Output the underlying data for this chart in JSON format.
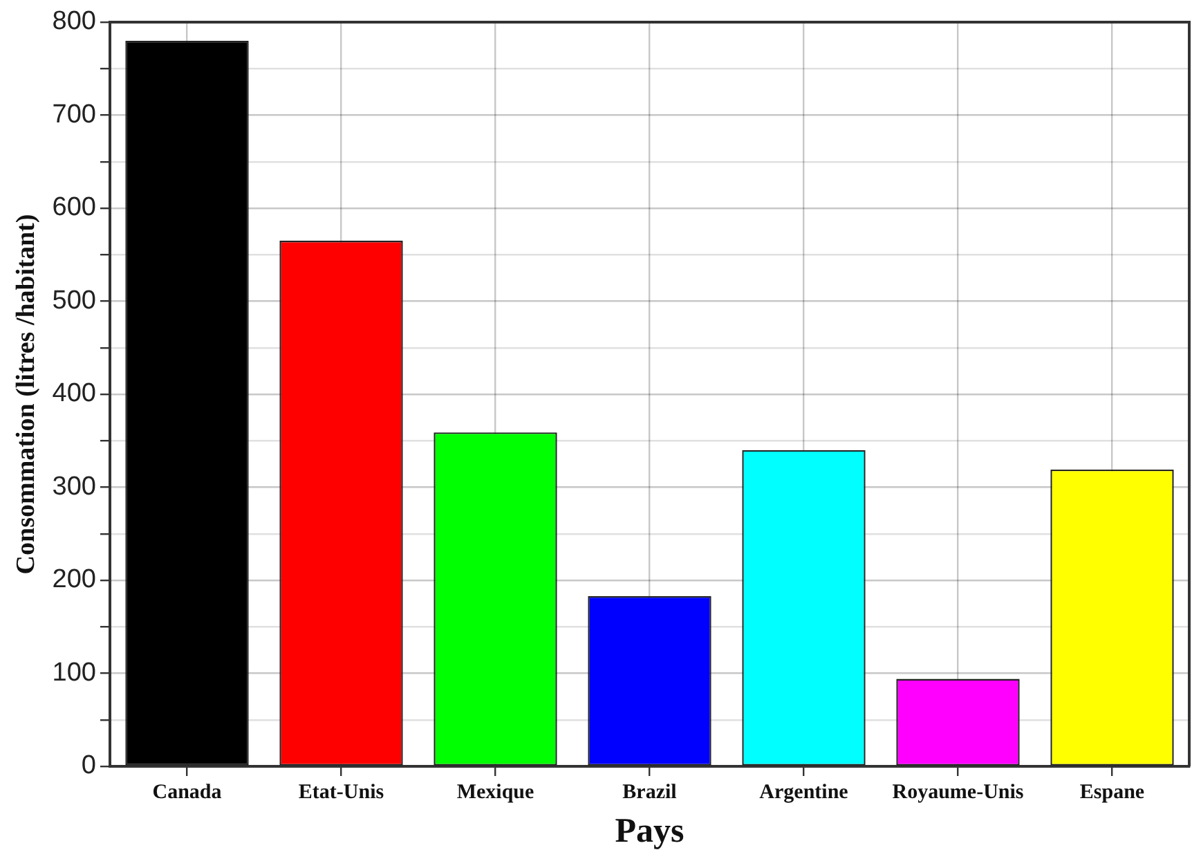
{
  "chart_data": {
    "type": "bar",
    "xlabel": "Pays",
    "ylabel": "Consommation (litres /habitant)",
    "categories": [
      "Canada",
      "Etat-Unis",
      "Mexique",
      "Brazil",
      "Argentine",
      "Royaume-Unis",
      "Espane"
    ],
    "values": [
      780,
      565,
      359,
      183,
      340,
      94,
      319
    ],
    "colors": [
      "#000000",
      "#ff0000",
      "#00ff00",
      "#0000ff",
      "#00ffff",
      "#ff00ff",
      "#ffff00"
    ],
    "ylim": [
      0,
      800
    ],
    "yticks": [
      0,
      {
        "value": 50,
        "label": null
      },
      100,
      {
        "value": 150,
        "label": null
      },
      200,
      {
        "value": 250,
        "label": null
      },
      300,
      {
        "value": 350,
        "label": null
      },
      400,
      {
        "value": 450,
        "label": null
      },
      500,
      {
        "value": 550,
        "label": null
      },
      600,
      {
        "value": 650,
        "label": null
      },
      700,
      {
        "value": 750,
        "label": null
      },
      800
    ],
    "grid": true
  }
}
